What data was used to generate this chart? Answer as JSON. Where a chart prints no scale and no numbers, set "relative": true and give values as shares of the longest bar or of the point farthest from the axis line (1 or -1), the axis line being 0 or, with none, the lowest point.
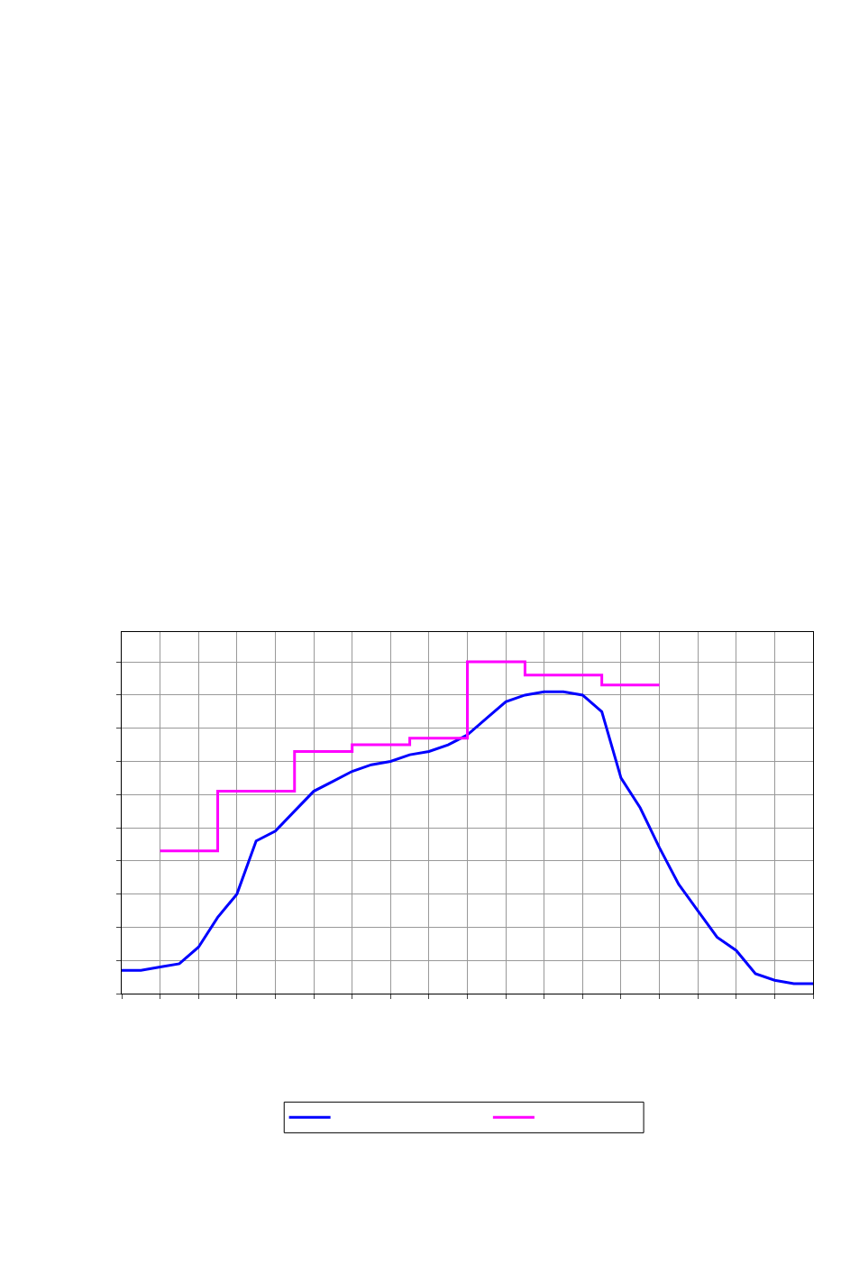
{
  "chart_data": {
    "type": "line",
    "relative": true,
    "grid": true,
    "categories": [
      null,
      null,
      null,
      null,
      null,
      null,
      null,
      null,
      null,
      null,
      null,
      null,
      null,
      null,
      null,
      null,
      null,
      null,
      null,
      null,
      null,
      null,
      null,
      null,
      null,
      null,
      null,
      null,
      null,
      null,
      null,
      null,
      null,
      null,
      null,
      null,
      null
    ],
    "series": [
      {
        "color": "#0000ff",
        "values": [
          0.07,
          0.07,
          0.08,
          0.09,
          0.14,
          0.23,
          0.3,
          0.46,
          0.49,
          0.55,
          0.61,
          0.64,
          0.67,
          0.69,
          0.7,
          0.72,
          0.73,
          0.75,
          0.78,
          0.83,
          0.88,
          0.9,
          0.91,
          0.91,
          0.9,
          0.85,
          0.65,
          0.56,
          0.44,
          0.33,
          0.25,
          0.17,
          0.13,
          0.06,
          0.04,
          0.03,
          0.03
        ]
      },
      {
        "type": "step",
        "color": "#ff00ff",
        "values": [
          null,
          null,
          0.43,
          0.43,
          0.43,
          0.61,
          0.61,
          0.61,
          0.61,
          0.73,
          0.73,
          0.73,
          0.75,
          0.75,
          0.75,
          0.77,
          0.77,
          0.77,
          1.0,
          1.0,
          1.0,
          0.96,
          0.96,
          0.96,
          0.96,
          0.93,
          0.93,
          0.93,
          0.93,
          null,
          null,
          null,
          null,
          null,
          null,
          null,
          null
        ]
      }
    ]
  }
}
